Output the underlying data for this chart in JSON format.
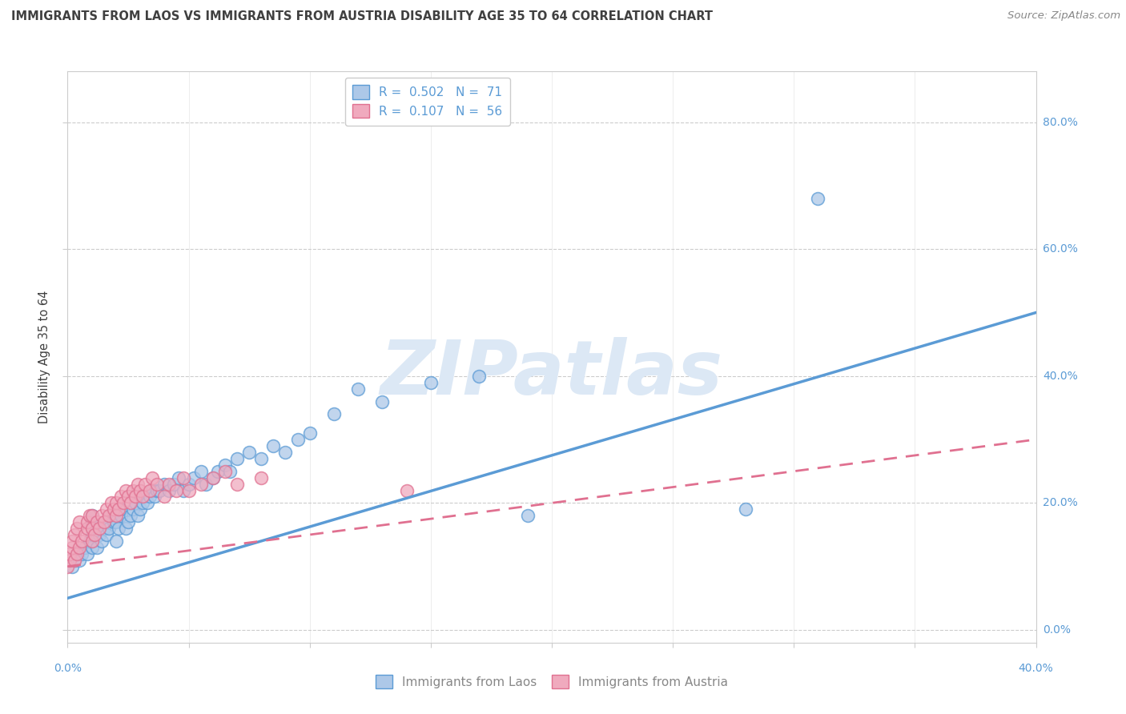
{
  "title": "IMMIGRANTS FROM LAOS VS IMMIGRANTS FROM AUSTRIA DISABILITY AGE 35 TO 64 CORRELATION CHART",
  "source": "Source: ZipAtlas.com",
  "ylabel": "Disability Age 35 to 64",
  "y_tick_labels": [
    "0.0%",
    "20.0%",
    "40.0%",
    "60.0%",
    "80.0%"
  ],
  "y_tick_values": [
    0.0,
    0.2,
    0.4,
    0.6,
    0.8
  ],
  "xlim": [
    0.0,
    0.4
  ],
  "ylim": [
    -0.02,
    0.88
  ],
  "color_laos": "#adc8e8",
  "color_austria": "#f0aabe",
  "color_laos_line": "#5b9bd5",
  "color_austria_line": "#e07090",
  "watermark_text": "ZIPatlas",
  "watermark_color": "#dce8f5",
  "laos_x": [
    0.002,
    0.003,
    0.004,
    0.005,
    0.006,
    0.007,
    0.008,
    0.009,
    0.01,
    0.01,
    0.01,
    0.01,
    0.01,
    0.01,
    0.012,
    0.013,
    0.014,
    0.015,
    0.016,
    0.016,
    0.017,
    0.018,
    0.019,
    0.02,
    0.02,
    0.021,
    0.022,
    0.022,
    0.024,
    0.025,
    0.026,
    0.027,
    0.028,
    0.029,
    0.03,
    0.031,
    0.032,
    0.033,
    0.034,
    0.035,
    0.036,
    0.037,
    0.038,
    0.04,
    0.042,
    0.044,
    0.046,
    0.048,
    0.05,
    0.052,
    0.055,
    0.057,
    0.06,
    0.062,
    0.065,
    0.067,
    0.07,
    0.075,
    0.08,
    0.085,
    0.09,
    0.095,
    0.1,
    0.11,
    0.12,
    0.13,
    0.15,
    0.17,
    0.19,
    0.28,
    0.31
  ],
  "laos_y": [
    0.1,
    0.11,
    0.12,
    0.11,
    0.12,
    0.13,
    0.12,
    0.14,
    0.13,
    0.14,
    0.15,
    0.16,
    0.17,
    0.18,
    0.13,
    0.15,
    0.14,
    0.16,
    0.15,
    0.17,
    0.16,
    0.18,
    0.17,
    0.14,
    0.17,
    0.16,
    0.18,
    0.19,
    0.16,
    0.17,
    0.18,
    0.19,
    0.2,
    0.18,
    0.19,
    0.2,
    0.21,
    0.2,
    0.21,
    0.22,
    0.21,
    0.22,
    0.22,
    0.23,
    0.22,
    0.23,
    0.24,
    0.22,
    0.23,
    0.24,
    0.25,
    0.23,
    0.24,
    0.25,
    0.26,
    0.25,
    0.27,
    0.28,
    0.27,
    0.29,
    0.28,
    0.3,
    0.31,
    0.34,
    0.38,
    0.36,
    0.39,
    0.4,
    0.18,
    0.19,
    0.68
  ],
  "austria_x": [
    0.0,
    0.001,
    0.001,
    0.002,
    0.002,
    0.003,
    0.003,
    0.004,
    0.004,
    0.005,
    0.005,
    0.006,
    0.007,
    0.008,
    0.008,
    0.009,
    0.01,
    0.01,
    0.01,
    0.011,
    0.012,
    0.013,
    0.014,
    0.015,
    0.016,
    0.017,
    0.018,
    0.019,
    0.02,
    0.02,
    0.021,
    0.022,
    0.023,
    0.024,
    0.025,
    0.026,
    0.027,
    0.028,
    0.029,
    0.03,
    0.031,
    0.032,
    0.034,
    0.035,
    0.037,
    0.04,
    0.042,
    0.045,
    0.048,
    0.05,
    0.055,
    0.06,
    0.065,
    0.07,
    0.08,
    0.14
  ],
  "austria_y": [
    0.1,
    0.11,
    0.12,
    0.13,
    0.14,
    0.11,
    0.15,
    0.12,
    0.16,
    0.13,
    0.17,
    0.14,
    0.15,
    0.16,
    0.17,
    0.18,
    0.14,
    0.16,
    0.18,
    0.15,
    0.17,
    0.16,
    0.18,
    0.17,
    0.19,
    0.18,
    0.2,
    0.19,
    0.18,
    0.2,
    0.19,
    0.21,
    0.2,
    0.22,
    0.21,
    0.2,
    0.22,
    0.21,
    0.23,
    0.22,
    0.21,
    0.23,
    0.22,
    0.24,
    0.23,
    0.21,
    0.23,
    0.22,
    0.24,
    0.22,
    0.23,
    0.24,
    0.25,
    0.23,
    0.24,
    0.22
  ],
  "background_color": "#ffffff",
  "grid_color": "#cccccc",
  "title_color": "#404040",
  "tick_label_color": "#5b9bd5"
}
